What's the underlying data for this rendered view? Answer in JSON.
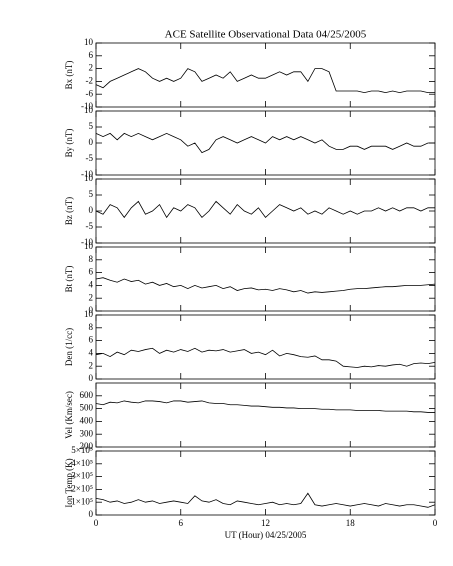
{
  "chart_data": [
    {
      "type": "line",
      "title": "ACE Satellite Observational Data   04/25/2005",
      "ylabel": "Bx (nT)",
      "ylim": [
        -10,
        10
      ],
      "yticks": [
        -10,
        -6,
        -2,
        2,
        6,
        10
      ],
      "color": "#000000",
      "x": [
        0,
        0.5,
        1,
        1.5,
        2,
        2.5,
        3,
        3.5,
        4,
        4.5,
        5,
        5.5,
        6,
        6.5,
        7,
        7.5,
        8,
        8.5,
        9,
        9.5,
        10,
        10.5,
        11,
        11.5,
        12,
        12.5,
        13,
        13.5,
        14,
        14.5,
        15,
        15.5,
        16,
        16.5,
        17,
        17.5,
        18,
        18.5,
        19,
        19.5,
        20,
        20.5,
        21,
        21.5,
        22,
        22.5,
        23,
        23.5,
        24
      ],
      "values": [
        -3,
        -4,
        -2,
        -1,
        0,
        1,
        2,
        1,
        -1,
        -2,
        -1,
        -2,
        -1,
        2,
        1,
        -2,
        -1,
        0,
        -1,
        1,
        -2,
        -1,
        0,
        -1,
        -1,
        0,
        1,
        0,
        1,
        1,
        -2,
        2,
        2,
        1,
        -5,
        -5,
        -5,
        -5,
        -5.5,
        -5,
        -5,
        -5.5,
        -5,
        -5.5,
        -5,
        -5,
        -5,
        -5.5,
        -5.5
      ]
    },
    {
      "type": "line",
      "ylabel": "By (nT)",
      "ylim": [
        -10,
        10
      ],
      "yticks": [
        -10,
        -5,
        0,
        5,
        10
      ],
      "color": "#000000",
      "x": [
        0,
        0.5,
        1,
        1.5,
        2,
        2.5,
        3,
        3.5,
        4,
        4.5,
        5,
        5.5,
        6,
        6.5,
        7,
        7.5,
        8,
        8.5,
        9,
        9.5,
        10,
        10.5,
        11,
        11.5,
        12,
        12.5,
        13,
        13.5,
        14,
        14.5,
        15,
        15.5,
        16,
        16.5,
        17,
        17.5,
        18,
        18.5,
        19,
        19.5,
        20,
        20.5,
        21,
        21.5,
        22,
        22.5,
        23,
        23.5,
        24
      ],
      "values": [
        3,
        2,
        3,
        1,
        3,
        2,
        3,
        2,
        1,
        2,
        3,
        2,
        1,
        -1,
        0,
        -3,
        -2,
        1,
        2,
        1,
        0,
        1,
        2,
        1,
        0,
        2,
        1,
        2,
        1,
        2,
        1,
        0,
        1,
        -1,
        -2,
        -2,
        -1,
        -1,
        -2,
        -1,
        -1,
        -1,
        -2,
        -1,
        0,
        -1,
        -1,
        0,
        0
      ]
    },
    {
      "type": "line",
      "ylabel": "Bz (nT)",
      "ylim": [
        -10,
        10
      ],
      "yticks": [
        -10,
        -5,
        0,
        5,
        10
      ],
      "color": "#000000",
      "x": [
        0,
        0.5,
        1,
        1.5,
        2,
        2.5,
        3,
        3.5,
        4,
        4.5,
        5,
        5.5,
        6,
        6.5,
        7,
        7.5,
        8,
        8.5,
        9,
        9.5,
        10,
        10.5,
        11,
        11.5,
        12,
        12.5,
        13,
        13.5,
        14,
        14.5,
        15,
        15.5,
        16,
        16.5,
        17,
        17.5,
        18,
        18.5,
        19,
        19.5,
        20,
        20.5,
        21,
        21.5,
        22,
        22.5,
        23,
        23.5,
        24
      ],
      "values": [
        0,
        -1,
        2,
        1,
        -2,
        1,
        3,
        -1,
        0,
        2,
        -2,
        1,
        0,
        2,
        1,
        -2,
        0,
        3,
        1,
        -1,
        2,
        0,
        -1,
        1,
        -2,
        0,
        2,
        1,
        0,
        1,
        -1,
        0,
        -1,
        1,
        0,
        -1,
        0,
        -1,
        0,
        0,
        1,
        0,
        1,
        0,
        1,
        1,
        0,
        1,
        1
      ]
    },
    {
      "type": "line",
      "ylabel": "Bt (nT)",
      "ylim": [
        0,
        10
      ],
      "yticks": [
        0,
        2,
        4,
        6,
        8,
        10
      ],
      "color": "#000000",
      "x": [
        0,
        0.5,
        1,
        1.5,
        2,
        2.5,
        3,
        3.5,
        4,
        4.5,
        5,
        5.5,
        6,
        6.5,
        7,
        7.5,
        8,
        8.5,
        9,
        9.5,
        10,
        10.5,
        11,
        11.5,
        12,
        12.5,
        13,
        13.5,
        14,
        14.5,
        15,
        15.5,
        16,
        16.5,
        17,
        17.5,
        18,
        18.5,
        19,
        19.5,
        20,
        20.5,
        21,
        21.5,
        22,
        22.5,
        23,
        23.5,
        24
      ],
      "values": [
        5,
        5.2,
        4.8,
        4.5,
        5,
        4.6,
        4.8,
        4.2,
        4.5,
        4,
        4.3,
        3.8,
        4,
        3.5,
        4,
        3.6,
        3.8,
        4,
        3.5,
        3.8,
        3.2,
        3.5,
        3.6,
        3.3,
        3.4,
        3.2,
        3.5,
        3.3,
        3,
        3.2,
        2.8,
        3,
        2.9,
        3,
        3.1,
        3.2,
        3.4,
        3.5,
        3.5,
        3.6,
        3.7,
        3.8,
        3.8,
        3.9,
        4,
        4,
        4,
        4.1,
        4.2
      ]
    },
    {
      "type": "line",
      "ylabel": "Den (1/cc)",
      "ylim": [
        0,
        10
      ],
      "yticks": [
        0,
        2,
        4,
        6,
        8,
        10
      ],
      "color": "#000000",
      "x": [
        0,
        0.5,
        1,
        1.5,
        2,
        2.5,
        3,
        3.5,
        4,
        4.5,
        5,
        5.5,
        6,
        6.5,
        7,
        7.5,
        8,
        8.5,
        9,
        9.5,
        10,
        10.5,
        11,
        11.5,
        12,
        12.5,
        13,
        13.5,
        14,
        14.5,
        15,
        15.5,
        16,
        16.5,
        17,
        17.5,
        18,
        18.5,
        19,
        19.5,
        20,
        20.5,
        21,
        21.5,
        22,
        22.5,
        23,
        23.5,
        24
      ],
      "values": [
        3.8,
        4,
        3.5,
        4.2,
        3.8,
        4.5,
        4.3,
        4.6,
        4.8,
        4,
        4.5,
        4.2,
        4.6,
        4.3,
        4.8,
        4.2,
        4.5,
        4.4,
        4.6,
        4.2,
        4.4,
        4.6,
        4,
        4.2,
        3.8,
        4.5,
        3.6,
        4,
        3.8,
        3.5,
        3.4,
        3.6,
        3,
        3,
        2.8,
        2,
        1.9,
        1.8,
        2,
        1.9,
        2.1,
        2,
        2.2,
        2.3,
        2,
        2.4,
        2.5,
        2.4,
        2.6
      ]
    },
    {
      "type": "line",
      "ylabel": "Vel (Km/sec)",
      "ylim": [
        200,
        700
      ],
      "yticks": [
        200,
        300,
        400,
        500,
        600
      ],
      "color": "#000000",
      "x": [
        0,
        0.5,
        1,
        1.5,
        2,
        2.5,
        3,
        3.5,
        4,
        4.5,
        5,
        5.5,
        6,
        6.5,
        7,
        7.5,
        8,
        8.5,
        9,
        9.5,
        10,
        10.5,
        11,
        11.5,
        12,
        12.5,
        13,
        13.5,
        14,
        14.5,
        15,
        15.5,
        16,
        16.5,
        17,
        17.5,
        18,
        18.5,
        19,
        19.5,
        20,
        20.5,
        21,
        21.5,
        22,
        22.5,
        23,
        23.5,
        24
      ],
      "values": [
        540,
        530,
        550,
        545,
        560,
        550,
        545,
        560,
        560,
        555,
        545,
        560,
        560,
        550,
        555,
        560,
        545,
        540,
        540,
        530,
        530,
        525,
        520,
        520,
        515,
        510,
        510,
        505,
        505,
        500,
        500,
        500,
        495,
        495,
        490,
        490,
        490,
        485,
        485,
        485,
        485,
        480,
        480,
        480,
        480,
        475,
        475,
        470,
        470
      ]
    },
    {
      "type": "line",
      "ylabel": "Ion Temp (K)",
      "ylim": [
        0,
        500000
      ],
      "yticks": [
        0,
        {
          "value": 100000,
          "label": "1×10⁵"
        },
        {
          "value": 200000,
          "label": "2×10⁵"
        },
        {
          "value": 300000,
          "label": "3×10⁵"
        },
        {
          "value": 400000,
          "label": "4×10⁵"
        },
        {
          "value": 500000,
          "label": "5×10⁵"
        }
      ],
      "color": "#000000",
      "xlabel": "UT (Hour)   04/25/2005",
      "xlim": [
        0,
        24
      ],
      "xticks": [
        0,
        6,
        12,
        18,
        {
          "value": 24,
          "label": "0"
        }
      ],
      "x": [
        0,
        0.5,
        1,
        1.5,
        2,
        2.5,
        3,
        3.5,
        4,
        4.5,
        5,
        5.5,
        6,
        6.5,
        7,
        7.5,
        8,
        8.5,
        9,
        9.5,
        10,
        10.5,
        11,
        11.5,
        12,
        12.5,
        13,
        13.5,
        14,
        14.5,
        15,
        15.5,
        16,
        16.5,
        17,
        17.5,
        18,
        18.5,
        19,
        19.5,
        20,
        20.5,
        21,
        21.5,
        22,
        22.5,
        23,
        23.5,
        24
      ],
      "values": [
        130000,
        120000,
        100000,
        110000,
        90000,
        100000,
        120000,
        100000,
        110000,
        90000,
        100000,
        110000,
        100000,
        90000,
        150000,
        110000,
        100000,
        120000,
        90000,
        80000,
        110000,
        100000,
        90000,
        80000,
        90000,
        100000,
        80000,
        90000,
        80000,
        90000,
        170000,
        80000,
        70000,
        80000,
        90000,
        80000,
        70000,
        80000,
        90000,
        80000,
        70000,
        90000,
        80000,
        70000,
        80000,
        80000,
        70000,
        60000,
        80000
      ]
    }
  ]
}
